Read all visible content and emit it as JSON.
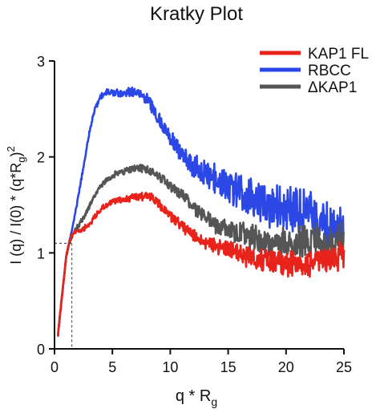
{
  "chart_data": {
    "type": "line",
    "title": "Kratky Plot",
    "xlabel": {
      "main": "q * R",
      "sub": "g"
    },
    "ylabel": {
      "p1": "I (q) / I(0) * (q*R",
      "sub": "g",
      "p2": ")",
      "sup": "2"
    },
    "xlim": [
      0,
      25
    ],
    "ylim": [
      0,
      3
    ],
    "xticks": [
      0,
      5,
      10,
      15,
      20,
      25
    ],
    "yticks": [
      0,
      1,
      2,
      3
    ],
    "grid": false,
    "legend_position": "top-right",
    "reference_point": {
      "x": 1.5,
      "y": 1.1
    },
    "colors": {
      "KAP1 FL": "#e8231b",
      "RBCC": "#2b47e6",
      "ΔKAP1": "#555555"
    },
    "series": [
      {
        "name": "KAP1 FL",
        "color": "#e8231b",
        "noise": [
          [
            0,
            0.02
          ],
          [
            6,
            0.03
          ],
          [
            12,
            0.06
          ],
          [
            16,
            0.09
          ],
          [
            20,
            0.12
          ],
          [
            25,
            0.14
          ]
        ],
        "x": [
          0.3,
          0.6,
          1.0,
          1.3,
          1.6,
          2.0,
          2.5,
          3.0,
          3.5,
          4.0,
          4.5,
          5.0,
          5.5,
          6.0,
          6.5,
          7.0,
          7.5,
          8.0,
          8.5,
          9.0,
          9.5,
          10.0,
          11.0,
          12.0,
          13.0,
          14.0,
          15.0,
          16.0,
          17.0,
          18.0,
          19.0,
          20.0,
          21.0,
          22.0,
          23.0,
          24.0,
          25.0
        ],
        "y": [
          0.15,
          0.5,
          0.95,
          1.12,
          1.2,
          1.23,
          1.25,
          1.3,
          1.38,
          1.45,
          1.5,
          1.53,
          1.55,
          1.56,
          1.57,
          1.58,
          1.59,
          1.6,
          1.57,
          1.5,
          1.45,
          1.38,
          1.28,
          1.18,
          1.12,
          1.08,
          1.03,
          0.98,
          0.95,
          0.93,
          0.92,
          0.9,
          0.88,
          0.87,
          0.9,
          0.95,
          1.0
        ]
      },
      {
        "name": "RBCC",
        "color": "#2b47e6",
        "noise": [
          [
            0,
            0.01
          ],
          [
            3,
            0.02
          ],
          [
            6,
            0.04
          ],
          [
            9,
            0.06
          ],
          [
            13,
            0.12
          ],
          [
            16,
            0.18
          ],
          [
            20,
            0.22
          ],
          [
            25,
            0.22
          ]
        ],
        "x": [
          0.3,
          0.6,
          1.0,
          1.3,
          1.6,
          2.0,
          2.5,
          3.0,
          3.5,
          4.0,
          4.5,
          5.0,
          5.5,
          6.0,
          6.5,
          7.0,
          7.5,
          8.0,
          8.5,
          9.0,
          9.5,
          10.0,
          11.0,
          12.0,
          13.0,
          14.0,
          15.0,
          16.0,
          17.0,
          18.0,
          19.0,
          20.0,
          21.0,
          22.0,
          23.0,
          24.0,
          25.0
        ],
        "y": [
          0.15,
          0.5,
          0.95,
          1.12,
          1.3,
          1.55,
          1.9,
          2.25,
          2.5,
          2.63,
          2.68,
          2.68,
          2.66,
          2.66,
          2.68,
          2.68,
          2.65,
          2.6,
          2.5,
          2.4,
          2.3,
          2.2,
          2.02,
          1.9,
          1.82,
          1.75,
          1.7,
          1.62,
          1.57,
          1.53,
          1.48,
          1.45,
          1.42,
          1.4,
          1.3,
          1.22,
          1.2
        ]
      },
      {
        "name": "ΔKAP1",
        "color": "#555555",
        "noise": [
          [
            0,
            0.02
          ],
          [
            6,
            0.03
          ],
          [
            11,
            0.05
          ],
          [
            15,
            0.1
          ],
          [
            20,
            0.15
          ],
          [
            25,
            0.18
          ]
        ],
        "x": [
          0.3,
          0.6,
          1.0,
          1.3,
          1.6,
          2.0,
          2.5,
          3.0,
          3.5,
          4.0,
          4.5,
          5.0,
          5.5,
          6.0,
          6.5,
          7.0,
          7.5,
          8.0,
          8.5,
          9.0,
          9.5,
          10.0,
          11.0,
          12.0,
          13.0,
          14.0,
          15.0,
          16.0,
          17.0,
          18.0,
          19.0,
          20.0,
          21.0,
          22.0,
          23.0,
          24.0,
          25.0
        ],
        "y": [
          0.15,
          0.5,
          0.95,
          1.12,
          1.2,
          1.27,
          1.37,
          1.48,
          1.6,
          1.7,
          1.76,
          1.8,
          1.83,
          1.85,
          1.87,
          1.88,
          1.88,
          1.87,
          1.84,
          1.8,
          1.75,
          1.7,
          1.6,
          1.48,
          1.38,
          1.3,
          1.25,
          1.2,
          1.16,
          1.12,
          1.1,
          1.1,
          1.12,
          1.1,
          1.1,
          1.12,
          1.15
        ]
      }
    ]
  }
}
